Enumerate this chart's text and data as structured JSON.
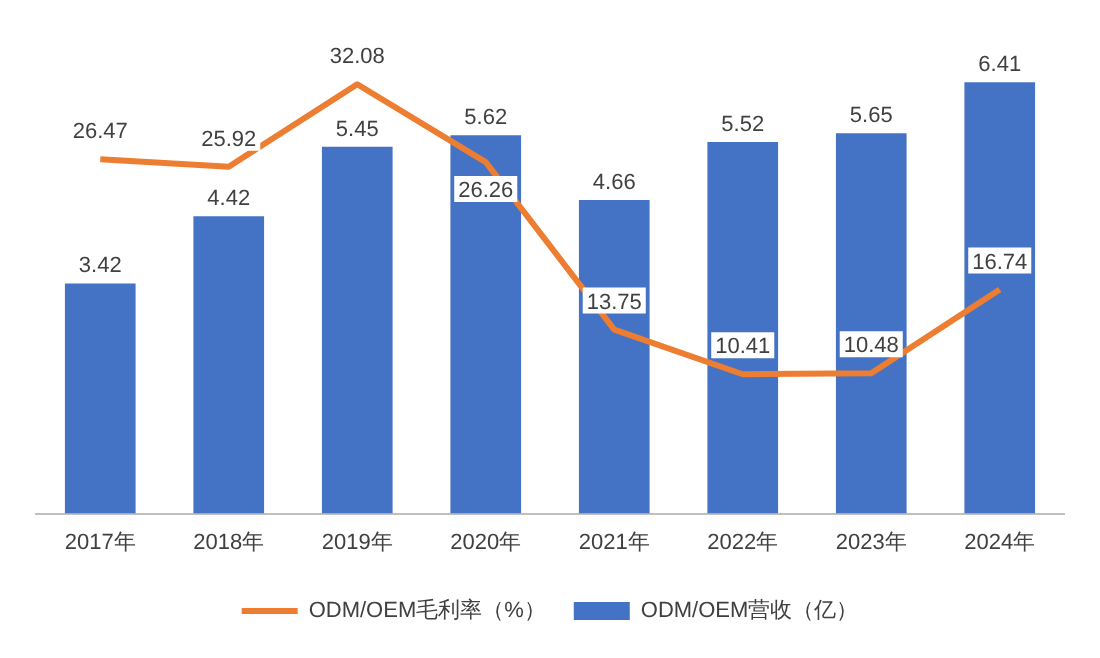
{
  "chart_data": {
    "type": "bar",
    "categories": [
      "2017年",
      "2018年",
      "2019年",
      "2020年",
      "2021年",
      "2022年",
      "2023年",
      "2024年"
    ],
    "series": [
      {
        "name": "ODM/OEM营收（亿）",
        "color": "#4472c4",
        "values": [
          3.42,
          4.42,
          5.45,
          5.62,
          4.66,
          5.52,
          5.65,
          6.41
        ]
      },
      {
        "name": "ODM/OEM毛利率（%）",
        "type": "line",
        "axis": "y2",
        "color": "#ed7d31",
        "values": [
          26.47,
          25.92,
          32.08,
          26.26,
          13.75,
          10.41,
          10.48,
          16.74
        ]
      }
    ],
    "data_labels": true,
    "legend": "bottom",
    "grid": false,
    "marker": "none",
    "line_style": "solid",
    "tick_labels": "x"
  }
}
